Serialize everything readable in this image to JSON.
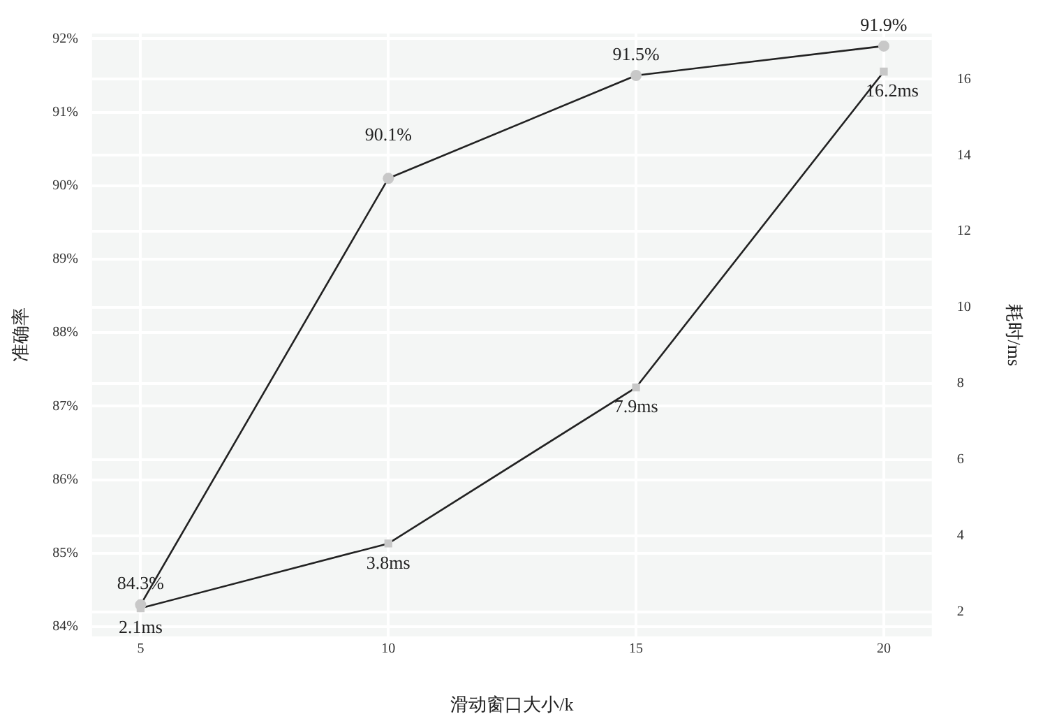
{
  "chart_data": {
    "type": "line",
    "xlabel": "滑动窗口大小/k",
    "ylabel": "准确率",
    "y2label": "耗时/ms",
    "x": [
      5,
      10,
      15,
      20
    ],
    "series": [
      {
        "color": "#222222",
        "marker": "circle",
        "values": [
          84.3,
          90.1,
          91.5,
          91.9
        ],
        "value_labels": [
          "84.3%",
          "90.1%",
          "91.5%",
          "91.9%"
        ]
      },
      {
        "color": "#222222",
        "marker": "square",
        "axis": "y2",
        "values": [
          2.1,
          3.8,
          7.9,
          16.2
        ],
        "value_labels": [
          "2.1ms",
          "3.8ms",
          "7.9ms",
          "16.2ms"
        ]
      }
    ],
    "xlim": [
      4.02,
      20.97
    ],
    "xticks": [
      5,
      10,
      15,
      20
    ],
    "ylim": [
      83.87,
      92.07
    ],
    "yticks": [
      {
        "value": 84,
        "label": "84%"
      },
      {
        "value": 85,
        "label": "85%"
      },
      {
        "value": 86,
        "label": "86%"
      },
      {
        "value": 87,
        "label": "87%"
      },
      {
        "value": 88,
        "label": "88%"
      },
      {
        "value": 89,
        "label": "89%"
      },
      {
        "value": 90,
        "label": "90%"
      },
      {
        "value": 91,
        "label": "91%"
      },
      {
        "value": 92,
        "label": "92%"
      }
    ],
    "y2lim": [
      1.36,
      17.2
    ],
    "y2ticks": [
      2,
      4,
      6,
      8,
      10,
      12,
      14,
      16
    ],
    "grid": true,
    "legend": false,
    "line_style": "solid"
  }
}
